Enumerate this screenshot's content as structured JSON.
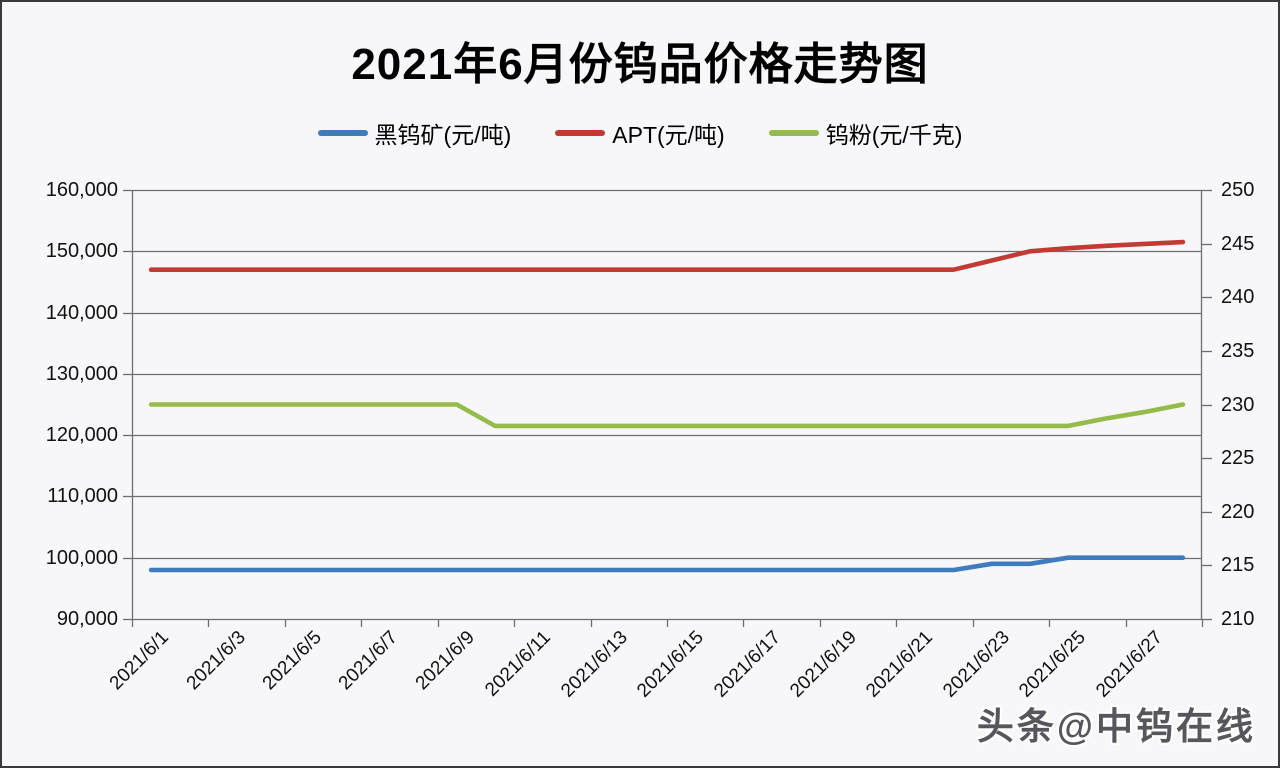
{
  "title": "2021年6月份钨品价格走势图",
  "watermark": "头条@中钨在线",
  "chart_data": {
    "type": "line",
    "title": "2021年6月份钨品价格走势图",
    "grid": true,
    "legend_position": "top-center",
    "x": [
      "2021/6/1",
      "2021/6/2",
      "2021/6/3",
      "2021/6/4",
      "2021/6/5",
      "2021/6/6",
      "2021/6/7",
      "2021/6/8",
      "2021/6/9",
      "2021/6/10",
      "2021/6/11",
      "2021/6/12",
      "2021/6/13",
      "2021/6/14",
      "2021/6/15",
      "2021/6/16",
      "2021/6/17",
      "2021/6/18",
      "2021/6/19",
      "2021/6/20",
      "2021/6/21",
      "2021/6/22",
      "2021/6/23",
      "2021/6/24",
      "2021/6/25",
      "2021/6/26",
      "2021/6/27",
      "2021/6/28"
    ],
    "x_axis": {
      "tick_labels": [
        "2021/6/1",
        "2021/6/3",
        "2021/6/5",
        "2021/6/7",
        "2021/6/9",
        "2021/6/11",
        "2021/6/13",
        "2021/6/15",
        "2021/6/17",
        "2021/6/19",
        "2021/6/21",
        "2021/6/23",
        "2021/6/25",
        "2021/6/27"
      ]
    },
    "left_axis": {
      "min": 90000,
      "max": 160000,
      "step": 10000,
      "tick_labels": [
        "160,000",
        "150,000",
        "140,000",
        "130,000",
        "120,000",
        "110,000",
        "100,000",
        "90,000"
      ]
    },
    "right_axis": {
      "min": 210,
      "max": 250,
      "step": 5,
      "tick_labels": [
        "250",
        "245",
        "240",
        "235",
        "230",
        "225",
        "220",
        "215",
        "210"
      ]
    },
    "series": [
      {
        "name": "黑钨矿(元/吨)",
        "axis": "left",
        "color": "#3E7CBF",
        "values": [
          98000,
          98000,
          98000,
          98000,
          98000,
          98000,
          98000,
          98000,
          98000,
          98000,
          98000,
          98000,
          98000,
          98000,
          98000,
          98000,
          98000,
          98000,
          98000,
          98000,
          98000,
          98000,
          99000,
          99000,
          100000,
          100000,
          100000,
          100000
        ]
      },
      {
        "name": "APT(元/吨)",
        "axis": "left",
        "color": "#C23B33",
        "values": [
          147000,
          147000,
          147000,
          147000,
          147000,
          147000,
          147000,
          147000,
          147000,
          147000,
          147000,
          147000,
          147000,
          147000,
          147000,
          147000,
          147000,
          147000,
          147000,
          147000,
          147000,
          147000,
          148500,
          150000,
          150500,
          150900,
          151200,
          151500
        ]
      },
      {
        "name": "钨粉(元/千克)",
        "axis": "right",
        "color": "#95BC4B",
        "values": [
          230,
          230,
          230,
          230,
          230,
          230,
          230,
          230,
          230,
          228,
          228,
          228,
          228,
          228,
          228,
          228,
          228,
          228,
          228,
          228,
          228,
          228,
          228,
          228,
          228,
          228.7,
          229.3,
          230
        ]
      }
    ],
    "colors": {
      "grid": "#6E6E72",
      "border": "#3A3A3E",
      "background": "#F7F6F8"
    }
  }
}
